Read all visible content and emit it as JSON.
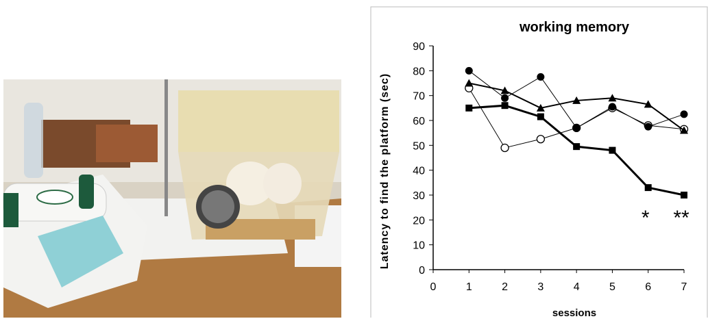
{
  "chart_data": {
    "type": "line",
    "title": "working memory",
    "x_label": "sessions",
    "y_label": "Latency to find the platform (sec)",
    "x": [
      1,
      2,
      3,
      4,
      5,
      6,
      7
    ],
    "xlim": [
      0,
      7
    ],
    "xticks": [
      0,
      1,
      2,
      3,
      4,
      5,
      6,
      7
    ],
    "ylim": [
      0,
      90
    ],
    "yticks": [
      0,
      10,
      20,
      30,
      40,
      50,
      60,
      70,
      80,
      90
    ],
    "grid": false,
    "series": [
      {
        "color": "#000000",
        "marker": "square",
        "linewidth": 3,
        "values": [
          65,
          66,
          61.5,
          49.5,
          48,
          33,
          30
        ]
      },
      {
        "color": "#000000",
        "marker": "open-circle",
        "linewidth": 1,
        "values": [
          73,
          49,
          52.5,
          57,
          65,
          58,
          56.5
        ]
      },
      {
        "color": "#000000",
        "marker": "circle",
        "linewidth": 1,
        "values": [
          80,
          69,
          77.5,
          57,
          65.5,
          57.5,
          62.5
        ]
      },
      {
        "color": "#000000",
        "marker": "triangle",
        "linewidth": 2,
        "values": [
          75,
          72,
          65,
          68,
          69,
          66.5,
          56
        ]
      }
    ],
    "annotations": [
      {
        "text": "*",
        "x": 6
      },
      {
        "text": "**",
        "x": 7
      }
    ]
  }
}
